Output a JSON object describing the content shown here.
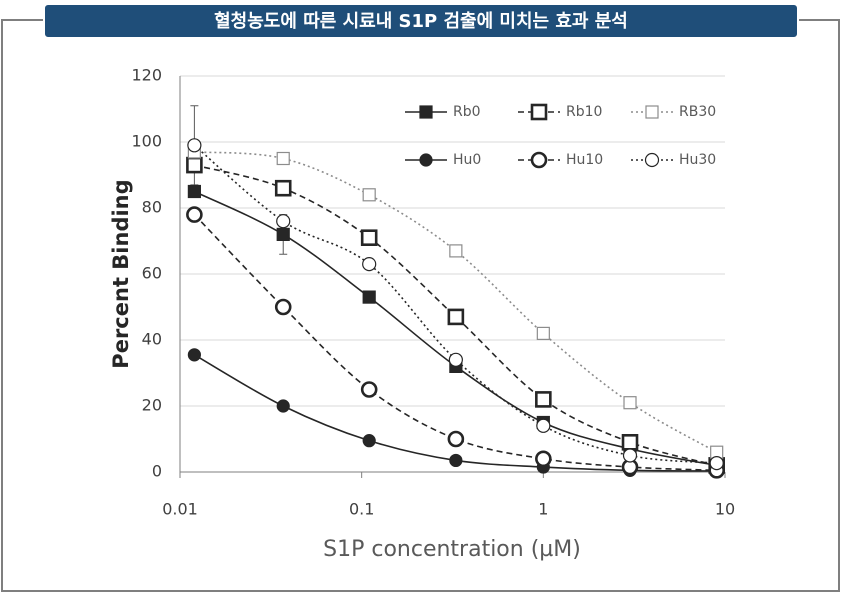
{
  "chart_data": {
    "type": "line",
    "title": "혈청농도에 따른 시료내 S1P 검출에 미치는 효과 분석",
    "x_label": "S1P concentration (µM)",
    "y_label": "Percent Binding",
    "x": [
      0.012,
      0.037,
      0.11,
      0.33,
      1,
      3,
      9
    ],
    "x_scale": "log",
    "xlim": [
      0.01,
      10
    ],
    "xticks": [
      0.01,
      0.1,
      1,
      10
    ],
    "ylim": [
      0,
      120
    ],
    "yticks": [
      0,
      20,
      40,
      60,
      80,
      100,
      120
    ],
    "grid": true,
    "legend_position": "upper right",
    "series": [
      {
        "name": "Rb0",
        "color": "#262626",
        "line_style": "solid",
        "marker": "square-filled",
        "values": [
          85,
          72,
          53,
          32,
          15,
          7,
          2
        ],
        "errors": [
          null,
          6,
          null,
          null,
          null,
          null,
          null
        ]
      },
      {
        "name": "Rb10",
        "color": "#262626",
        "line_style": "dashed",
        "marker": "square-open-large",
        "values": [
          93,
          86,
          71,
          47,
          22,
          9,
          2
        ]
      },
      {
        "name": "RB30",
        "color": "#8c8c8c",
        "line_style": "dotted",
        "marker": "square-open-small",
        "values": [
          97,
          95,
          84,
          67,
          42,
          21,
          6
        ]
      },
      {
        "name": "Hu0",
        "color": "#262626",
        "line_style": "solid",
        "marker": "circle-filled",
        "values": [
          35.5,
          20,
          9.5,
          3.5,
          1.5,
          0.5,
          0.3
        ]
      },
      {
        "name": "Hu10",
        "color": "#262626",
        "line_style": "dashed",
        "marker": "circle-open-large",
        "values": [
          78,
          50,
          25,
          10,
          4,
          1.5,
          0.5
        ]
      },
      {
        "name": "Hu30",
        "color": "#262626",
        "line_style": "dotted",
        "marker": "circle-open-small",
        "values": [
          99,
          76,
          63,
          34,
          14,
          5,
          2.7
        ],
        "errors": [
          12,
          null,
          null,
          null,
          null,
          null,
          null
        ]
      }
    ]
  }
}
